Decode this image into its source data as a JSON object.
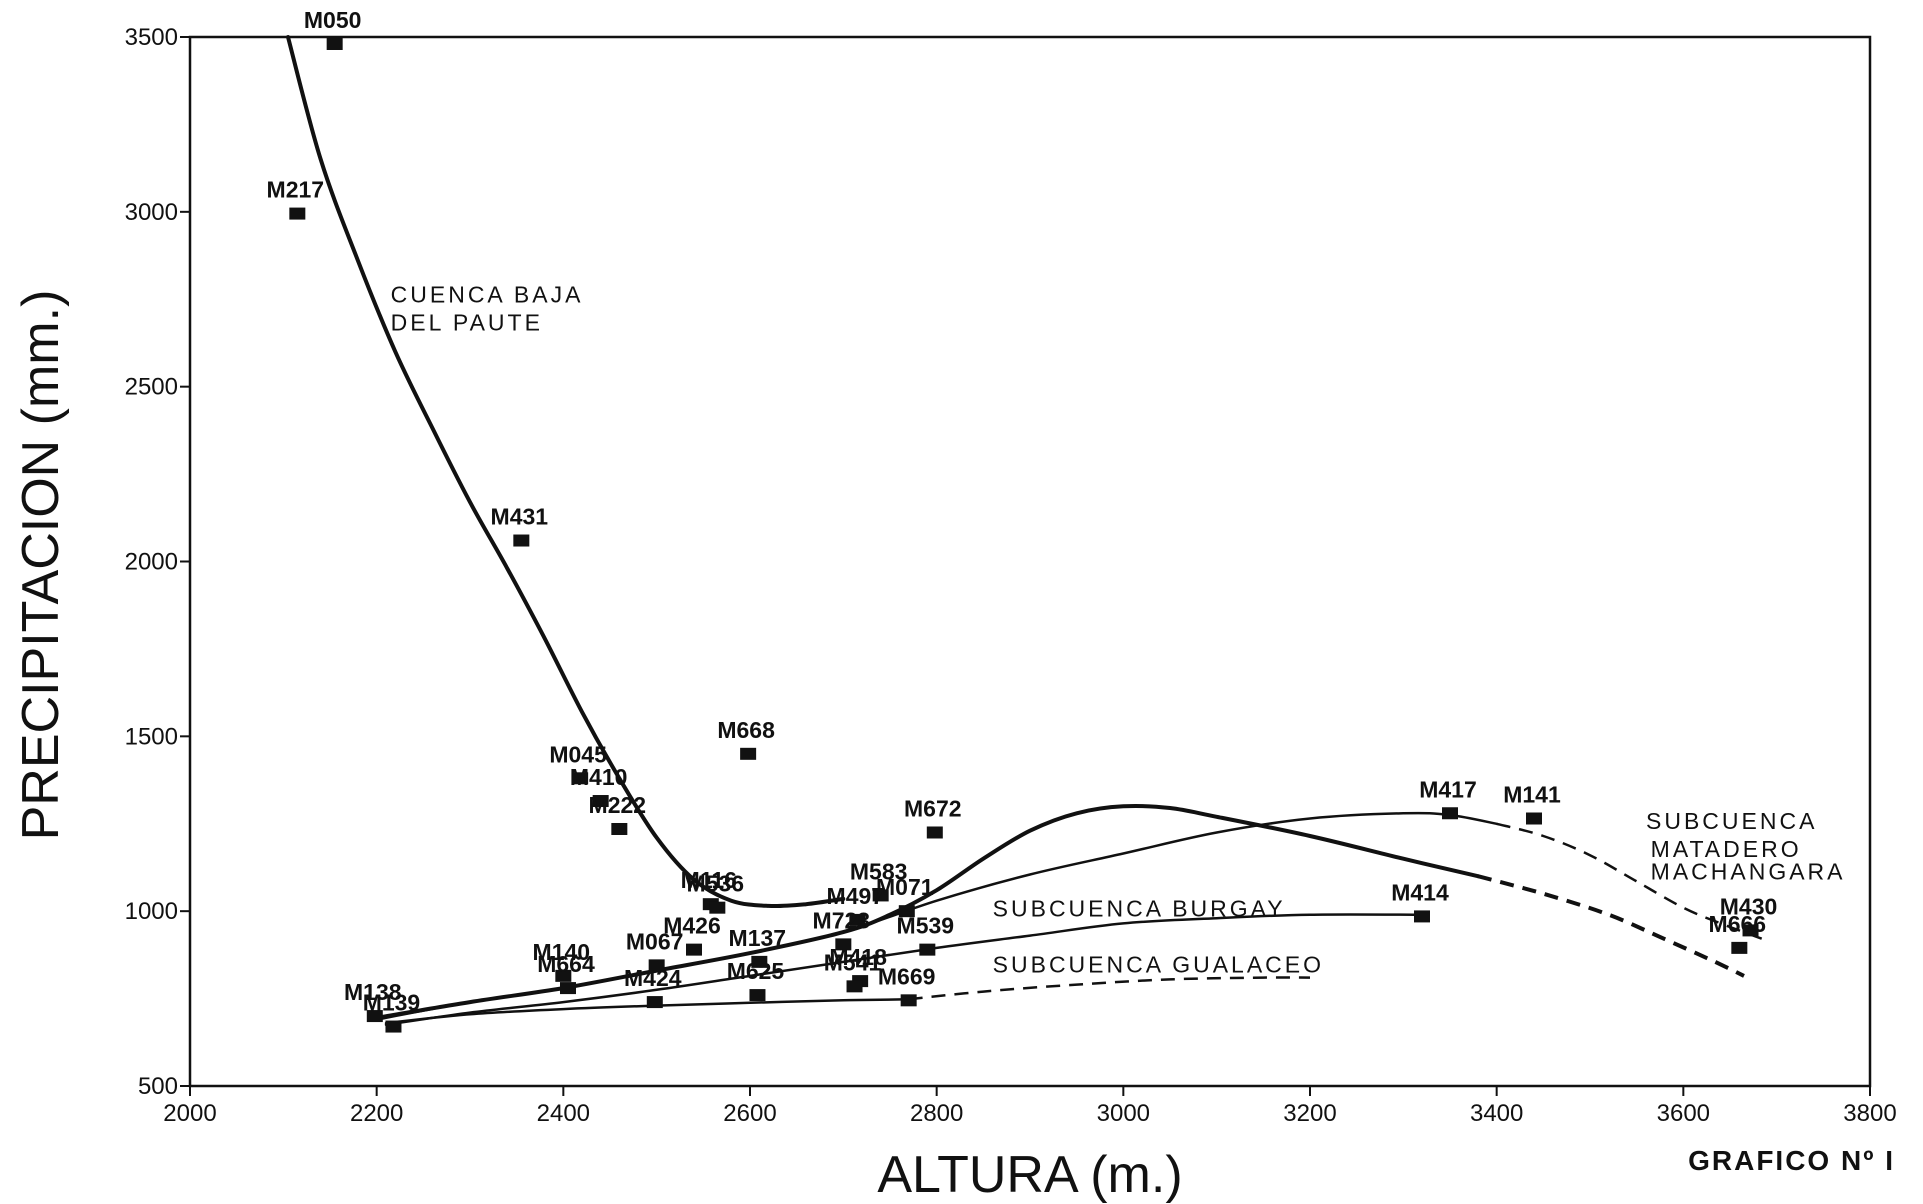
{
  "chart_data": {
    "type": "scatter",
    "xlabel": "ALTURA (m.)",
    "ylabel": "PRECIPITACION (mm.)",
    "caption": "GRAFICO Nº I",
    "xlim": [
      2000,
      3800
    ],
    "ylim": [
      500,
      3500
    ],
    "x_ticks": [
      "2000",
      "2200",
      "2400",
      "2600",
      "2800",
      "3000",
      "3200",
      "3400",
      "3600",
      "3800"
    ],
    "y_ticks": [
      "500",
      "1000",
      "1500",
      "2000",
      "2500",
      "3000",
      "3500"
    ],
    "grid": false,
    "points": [
      {
        "label": "M050",
        "x": 2155,
        "y": 3480
      },
      {
        "label": "M217",
        "x": 2115,
        "y": 2995
      },
      {
        "label": "M431",
        "x": 2355,
        "y": 2060
      },
      {
        "label": "M668",
        "x": 2598,
        "y": 1450
      },
      {
        "label": "M045",
        "x": 2418,
        "y": 1380
      },
      {
        "label": "M410",
        "x": 2440,
        "y": 1315
      },
      {
        "label": "M222",
        "x": 2460,
        "y": 1235
      },
      {
        "label": "M672",
        "x": 2798,
        "y": 1225
      },
      {
        "label": "M417",
        "x": 3350,
        "y": 1280
      },
      {
        "label": "M141",
        "x": 3440,
        "y": 1265
      },
      {
        "label": "M116",
        "x": 2558,
        "y": 1020
      },
      {
        "label": "M536",
        "x": 2565,
        "y": 1010
      },
      {
        "label": "M583",
        "x": 2740,
        "y": 1045
      },
      {
        "label": "M071",
        "x": 2768,
        "y": 1000
      },
      {
        "label": "M497",
        "x": 2715,
        "y": 975
      },
      {
        "label": "M723",
        "x": 2700,
        "y": 905
      },
      {
        "label": "M539",
        "x": 2790,
        "y": 890
      },
      {
        "label": "M414",
        "x": 3320,
        "y": 985
      },
      {
        "label": "M430",
        "x": 3672,
        "y": 945
      },
      {
        "label": "M666",
        "x": 3660,
        "y": 895
      },
      {
        "label": "M426",
        "x": 2540,
        "y": 890
      },
      {
        "label": "M067",
        "x": 2500,
        "y": 845
      },
      {
        "label": "M137",
        "x": 2610,
        "y": 855
      },
      {
        "label": "M140",
        "x": 2400,
        "y": 815
      },
      {
        "label": "M664",
        "x": 2405,
        "y": 780
      },
      {
        "label": "M424",
        "x": 2498,
        "y": 740
      },
      {
        "label": "M625",
        "x": 2608,
        "y": 760
      },
      {
        "label": "M418",
        "x": 2718,
        "y": 800
      },
      {
        "label": "M541",
        "x": 2712,
        "y": 785
      },
      {
        "label": "M669",
        "x": 2770,
        "y": 745
      },
      {
        "label": "M138",
        "x": 2198,
        "y": 700
      },
      {
        "label": "M139",
        "x": 2218,
        "y": 670
      }
    ],
    "series": [
      {
        "name": "CUENCA BAJA DEL PAUTE",
        "points": [
          [
            2105,
            3500
          ],
          [
            2140,
            3150
          ],
          [
            2180,
            2860
          ],
          [
            2220,
            2600
          ],
          [
            2260,
            2380
          ],
          [
            2300,
            2170
          ],
          [
            2340,
            1980
          ],
          [
            2380,
            1780
          ],
          [
            2420,
            1570
          ],
          [
            2460,
            1380
          ],
          [
            2500,
            1210
          ],
          [
            2540,
            1090
          ],
          [
            2580,
            1030
          ],
          [
            2620,
            1015
          ],
          [
            2660,
            1020
          ],
          [
            2700,
            1035
          ]
        ]
      },
      {
        "name": "SUBCUENCA MATADERO MACHANGARA",
        "points": [
          [
            2200,
            695
          ],
          [
            2300,
            740
          ],
          [
            2400,
            780
          ],
          [
            2500,
            830
          ],
          [
            2600,
            880
          ],
          [
            2700,
            940
          ],
          [
            2750,
            990
          ],
          [
            2800,
            1060
          ],
          [
            2850,
            1150
          ],
          [
            2900,
            1230
          ],
          [
            2950,
            1280
          ],
          [
            3000,
            1300
          ],
          [
            3050,
            1295
          ],
          [
            3100,
            1270
          ],
          [
            3200,
            1215
          ],
          [
            3300,
            1150
          ],
          [
            3380,
            1100
          ]
        ],
        "dashed_points": [
          [
            3380,
            1100
          ],
          [
            3450,
            1050
          ],
          [
            3520,
            990
          ],
          [
            3580,
            920
          ],
          [
            3630,
            860
          ],
          [
            3665,
            815
          ]
        ]
      },
      {
        "name": "SUBCUENCA BURGAY",
        "points": [
          [
            2200,
            690
          ],
          [
            2300,
            740
          ],
          [
            2400,
            780
          ],
          [
            2500,
            830
          ],
          [
            2600,
            880
          ],
          [
            2700,
            940
          ],
          [
            2800,
            1030
          ],
          [
            2900,
            1105
          ],
          [
            3000,
            1165
          ],
          [
            3100,
            1225
          ],
          [
            3200,
            1265
          ],
          [
            3300,
            1280
          ],
          [
            3350,
            1275
          ],
          [
            3400,
            1250
          ]
        ],
        "dashed_points": [
          [
            3400,
            1250
          ],
          [
            3450,
            1215
          ],
          [
            3500,
            1160
          ],
          [
            3550,
            1085
          ],
          [
            3600,
            1010
          ],
          [
            3640,
            965
          ],
          [
            3685,
            920
          ]
        ]
      },
      {
        "name": "SUBCUENCA BURGAY (lower)",
        "points": [
          [
            2210,
            675
          ],
          [
            2300,
            710
          ],
          [
            2400,
            740
          ],
          [
            2500,
            775
          ],
          [
            2600,
            815
          ],
          [
            2700,
            855
          ],
          [
            2800,
            895
          ],
          [
            2900,
            930
          ],
          [
            3000,
            965
          ],
          [
            3100,
            980
          ],
          [
            3200,
            990
          ],
          [
            3320,
            990
          ]
        ]
      },
      {
        "name": "SUBCUENCA GUALACEO",
        "points": [
          [
            2210,
            680
          ],
          [
            2300,
            705
          ],
          [
            2400,
            720
          ],
          [
            2500,
            730
          ],
          [
            2600,
            738
          ],
          [
            2700,
            745
          ],
          [
            2770,
            748
          ]
        ],
        "dashed_points": [
          [
            2770,
            748
          ],
          [
            2850,
            770
          ],
          [
            2950,
            790
          ],
          [
            3050,
            805
          ],
          [
            3150,
            810
          ],
          [
            3200,
            810
          ]
        ]
      }
    ],
    "annotations": [
      {
        "text": "CUENCA BAJA",
        "x": 2215,
        "y": 2740
      },
      {
        "text": "DEL PAUTE",
        "x": 2215,
        "y": 2660
      },
      {
        "text": "SUBCUENCA BURGAY",
        "x": 2860,
        "y": 985
      },
      {
        "text": "SUBCUENCA GUALACEO",
        "x": 2860,
        "y": 825
      },
      {
        "text": "SUBCUENCA",
        "x": 3560,
        "y": 1235
      },
      {
        "text": "MATADERO",
        "x": 3565,
        "y": 1155
      },
      {
        "text": "MACHANGARA",
        "x": 3565,
        "y": 1090
      }
    ]
  }
}
